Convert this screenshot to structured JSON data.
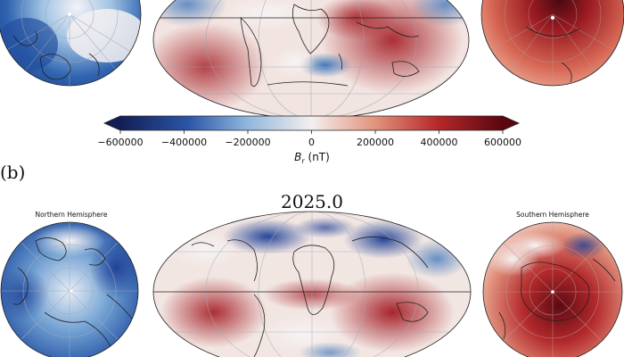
{
  "panel_b_label": "(b)",
  "epoch_title": "2025.0",
  "north_label": "Northern Hemisphere",
  "south_label": "Southern Hemisphere",
  "colorbar": {
    "label": "B_r (nT)",
    "ticks": [
      "−600000",
      "−400000",
      "−200000",
      "0",
      "200000",
      "400000",
      "600000"
    ],
    "tick_values": [
      -600000,
      -400000,
      -200000,
      0,
      200000,
      400000,
      600000
    ],
    "range": [
      -600000,
      600000
    ],
    "colors": {
      "neg": "#1b2a6b",
      "mid": "#f5f0ef",
      "pos": "#6b0b12"
    }
  }
}
